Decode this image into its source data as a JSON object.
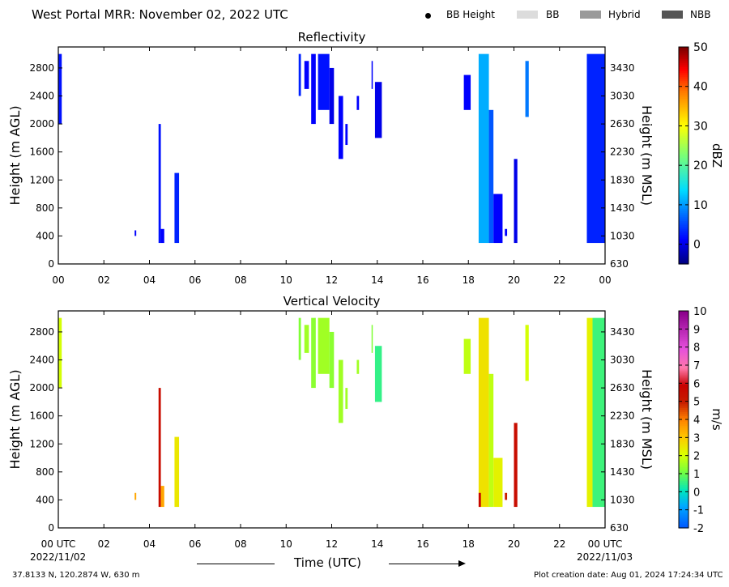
{
  "header": {
    "title": "West Portal MRR:  November 02, 2022 UTC",
    "legend": [
      {
        "label": "BB Height",
        "kind": "dot",
        "color": "#000000"
      },
      {
        "label": "BB",
        "kind": "swatch",
        "color": "#dcdcdc"
      },
      {
        "label": "Hybrid",
        "kind": "swatch",
        "color": "#9a9a9a"
      },
      {
        "label": "NBB",
        "kind": "swatch",
        "color": "#555555"
      }
    ]
  },
  "footer": {
    "location": "37.8133 N, 120.2874 W, 630 m",
    "creation": "Plot creation date: Aug 01, 2024 17:24:34 UTC",
    "xlabel": "Time (UTC)",
    "start_date": "2022/11/02",
    "end_date": "2022/11/03"
  },
  "chart_data": [
    {
      "type": "heatmap",
      "title": "Reflectivity",
      "ylabel": "Height (m AGL)",
      "y2label": "Height (m MSL)",
      "cbar_label": "dBZ",
      "xlim": [
        0,
        24
      ],
      "ylim": [
        0,
        3100
      ],
      "xticks": [
        "00",
        "02",
        "04",
        "06",
        "08",
        "10",
        "12",
        "14",
        "16",
        "18",
        "20",
        "22",
        "00"
      ],
      "yticks": [
        0,
        400,
        800,
        1200,
        1600,
        2000,
        2400,
        2800
      ],
      "y2ticks": [
        "630",
        "1030",
        "1430",
        "1830",
        "2230",
        "2630",
        "3030",
        "3430"
      ],
      "cbar_range": [
        -5,
        50
      ],
      "cbar_ticks": [
        0,
        10,
        20,
        30,
        40,
        50
      ],
      "cmap": "jet",
      "echoes": [
        {
          "t0": 0.0,
          "t1": 0.15,
          "z0": 2000,
          "z1": 3000,
          "v": 2
        },
        {
          "t0": 3.35,
          "t1": 3.42,
          "z0": 400,
          "z1": 480,
          "v": 1
        },
        {
          "t0": 4.4,
          "t1": 4.5,
          "z0": 300,
          "z1": 2000,
          "v": 2
        },
        {
          "t0": 4.5,
          "t1": 4.65,
          "z0": 300,
          "z1": 500,
          "v": 1
        },
        {
          "t0": 5.1,
          "t1": 5.3,
          "z0": 300,
          "z1": 1300,
          "v": 3
        },
        {
          "t0": 10.55,
          "t1": 10.65,
          "z0": 2400,
          "z1": 3000,
          "v": 3
        },
        {
          "t0": 10.8,
          "t1": 11.0,
          "z0": 2500,
          "z1": 2900,
          "v": 1
        },
        {
          "t0": 11.1,
          "t1": 11.3,
          "z0": 2000,
          "z1": 3000,
          "v": 1
        },
        {
          "t0": 11.4,
          "t1": 11.9,
          "z0": 2200,
          "z1": 3000,
          "v": 2
        },
        {
          "t0": 11.9,
          "t1": 12.1,
          "z0": 2000,
          "z1": 2800,
          "v": 0
        },
        {
          "t0": 12.3,
          "t1": 12.5,
          "z0": 1500,
          "z1": 2400,
          "v": 1
        },
        {
          "t0": 12.6,
          "t1": 12.7,
          "z0": 1700,
          "z1": 2000,
          "v": 1
        },
        {
          "t0": 13.1,
          "t1": 13.2,
          "z0": 2200,
          "z1": 2400,
          "v": 1
        },
        {
          "t0": 13.75,
          "t1": 13.8,
          "z0": 2500,
          "z1": 2900,
          "v": 1
        },
        {
          "t0": 13.9,
          "t1": 14.2,
          "z0": 1800,
          "z1": 2600,
          "v": 0
        },
        {
          "t0": 17.8,
          "t1": 18.1,
          "z0": 2200,
          "z1": 2700,
          "v": 1
        },
        {
          "t0": 18.45,
          "t1": 18.9,
          "z0": 300,
          "z1": 3000,
          "v": 11
        },
        {
          "t0": 18.9,
          "t1": 19.1,
          "z0": 300,
          "z1": 2200,
          "v": 6
        },
        {
          "t0": 19.1,
          "t1": 19.5,
          "z0": 300,
          "z1": 1000,
          "v": 1
        },
        {
          "t0": 19.6,
          "t1": 19.7,
          "z0": 400,
          "z1": 500,
          "v": 1
        },
        {
          "t0": 20.0,
          "t1": 20.15,
          "z0": 300,
          "z1": 1500,
          "v": 0
        },
        {
          "t0": 20.5,
          "t1": 20.65,
          "z0": 2100,
          "z1": 2900,
          "v": 8
        },
        {
          "t0": 23.2,
          "t1": 24.0,
          "z0": 300,
          "z1": 3000,
          "v": 3
        }
      ]
    },
    {
      "type": "heatmap",
      "title": "Vertical Velocity",
      "ylabel": "Height (m AGL)",
      "y2label": "Height (m MSL)",
      "cbar_label": "m/s",
      "xlim": [
        0,
        24
      ],
      "ylim": [
        0,
        3100
      ],
      "xticks": [
        "00 UTC",
        "02",
        "04",
        "06",
        "08",
        "10",
        "12",
        "14",
        "16",
        "18",
        "20",
        "22",
        "00 UTC"
      ],
      "yticks": [
        0,
        400,
        800,
        1200,
        1600,
        2000,
        2400,
        2800
      ],
      "y2ticks": [
        "630",
        "1030",
        "1430",
        "1830",
        "2230",
        "2630",
        "3030",
        "3430"
      ],
      "cbar_range": [
        -2,
        10
      ],
      "cbar_ticks": [
        -2,
        -1,
        0,
        1,
        2,
        3,
        4,
        5,
        6,
        7,
        8,
        9,
        10
      ],
      "cmap": "velocity",
      "echoes": [
        {
          "t0": 0.0,
          "t1": 0.15,
          "z0": 2000,
          "z1": 3000,
          "v": 2.0
        },
        {
          "t0": 3.35,
          "t1": 3.42,
          "z0": 400,
          "z1": 500,
          "v": 3.5
        },
        {
          "t0": 4.4,
          "t1": 4.5,
          "z0": 300,
          "z1": 2000,
          "v": 5.5
        },
        {
          "t0": 4.5,
          "t1": 4.65,
          "z0": 300,
          "z1": 600,
          "v": 3.5
        },
        {
          "t0": 5.1,
          "t1": 5.3,
          "z0": 300,
          "z1": 1300,
          "v": 2.5
        },
        {
          "t0": 10.55,
          "t1": 10.65,
          "z0": 2400,
          "z1": 3000,
          "v": 1.2
        },
        {
          "t0": 10.8,
          "t1": 11.0,
          "z0": 2500,
          "z1": 2900,
          "v": 1.5
        },
        {
          "t0": 11.1,
          "t1": 11.3,
          "z0": 2000,
          "z1": 3000,
          "v": 1.3
        },
        {
          "t0": 11.4,
          "t1": 11.9,
          "z0": 2200,
          "z1": 3000,
          "v": 1.5
        },
        {
          "t0": 11.9,
          "t1": 12.1,
          "z0": 2000,
          "z1": 2800,
          "v": 1.3
        },
        {
          "t0": 12.3,
          "t1": 12.5,
          "z0": 1500,
          "z1": 2400,
          "v": 1.5
        },
        {
          "t0": 12.6,
          "t1": 12.7,
          "z0": 1700,
          "z1": 2000,
          "v": 1.5
        },
        {
          "t0": 13.1,
          "t1": 13.2,
          "z0": 2200,
          "z1": 2400,
          "v": 1.5
        },
        {
          "t0": 13.75,
          "t1": 13.8,
          "z0": 2500,
          "z1": 2900,
          "v": 1.2
        },
        {
          "t0": 13.9,
          "t1": 14.2,
          "z0": 1800,
          "z1": 2600,
          "v": 0.5
        },
        {
          "t0": 17.8,
          "t1": 18.1,
          "z0": 2200,
          "z1": 2700,
          "v": 1.8
        },
        {
          "t0": 18.45,
          "t1": 18.9,
          "z0": 300,
          "z1": 3000,
          "v": 2.6
        },
        {
          "t0": 18.45,
          "t1": 18.55,
          "z0": 300,
          "z1": 500,
          "v": 5.8
        },
        {
          "t0": 18.9,
          "t1": 19.1,
          "z0": 300,
          "z1": 2200,
          "v": 1.8
        },
        {
          "t0": 19.1,
          "t1": 19.5,
          "z0": 300,
          "z1": 1000,
          "v": 2.3
        },
        {
          "t0": 19.6,
          "t1": 19.7,
          "z0": 400,
          "z1": 500,
          "v": 5.0
        },
        {
          "t0": 20.0,
          "t1": 20.15,
          "z0": 300,
          "z1": 1500,
          "v": 5.5
        },
        {
          "t0": 20.5,
          "t1": 20.65,
          "z0": 2100,
          "z1": 2900,
          "v": 2.0
        },
        {
          "t0": 23.2,
          "t1": 23.45,
          "z0": 300,
          "z1": 3000,
          "v": 2.3
        },
        {
          "t0": 23.45,
          "t1": 24.0,
          "z0": 300,
          "z1": 3000,
          "v": 0.6
        }
      ]
    }
  ]
}
